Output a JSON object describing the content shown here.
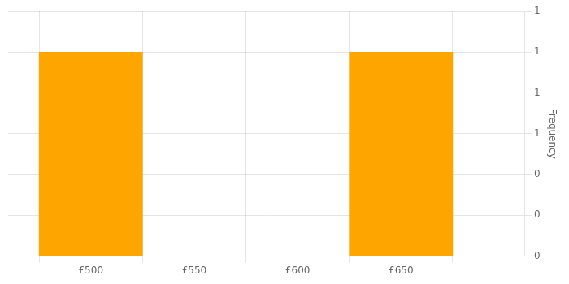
{
  "chart_data": {
    "type": "histogram",
    "bins": [
      475,
      525,
      575,
      625,
      675
    ],
    "values": [
      1,
      0,
      0,
      1
    ],
    "color": "#FFA500",
    "ylabel": "Frequency",
    "xlim": [
      460,
      710
    ],
    "ylim": [
      0,
      1.2
    ],
    "xticks": [
      {
        "value": 500,
        "label": "£500"
      },
      {
        "value": 550,
        "label": "£550"
      },
      {
        "value": 600,
        "label": "£600"
      },
      {
        "value": 650,
        "label": "£650"
      }
    ],
    "yticks": [
      0,
      {
        "value": 0.2,
        "label": "0"
      },
      {
        "value": 0.4,
        "label": "0"
      },
      {
        "value": 0.6,
        "label": "1"
      },
      {
        "value": 0.8,
        "label": "1"
      },
      1,
      {
        "value": 1.2,
        "label": "1"
      }
    ],
    "grid": true
  }
}
